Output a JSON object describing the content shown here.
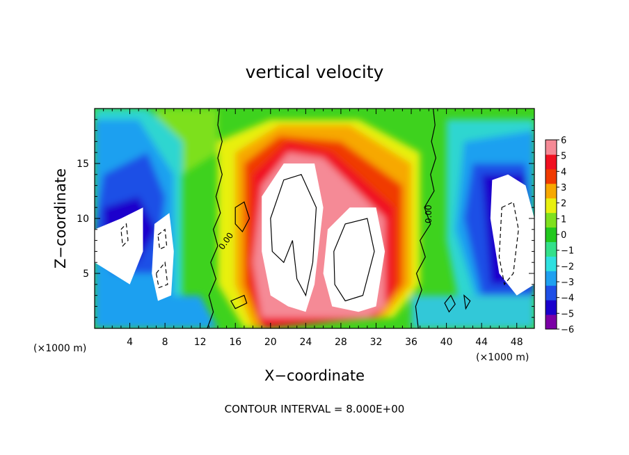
{
  "chart_data": {
    "type": "heatmap",
    "title": "vertical velocity",
    "xlabel": "X−coordinate",
    "ylabel": "Z−coordinate",
    "x_unit": "(×1000 m)",
    "y_unit": "(×1000 m)",
    "xlim": [
      0,
      50
    ],
    "ylim": [
      0,
      20
    ],
    "x_ticks": [
      "4",
      "8",
      "12",
      "16",
      "20",
      "24",
      "28",
      "32",
      "36",
      "40",
      "44",
      "48"
    ],
    "y_ticks": [
      "5",
      "10",
      "15"
    ],
    "contour_interval_text": "CONTOUR INTERVAL = 8.000E+00",
    "contour_interval": 8,
    "contour_labels": [
      "0.00",
      "0.00"
    ],
    "colorbar": {
      "ticks": [
        "6",
        "5",
        "4",
        "3",
        "2",
        "1",
        "0",
        "−1",
        "−2",
        "−3",
        "−4",
        "−5",
        "−6"
      ],
      "range": [
        -6,
        6
      ],
      "colors": [
        "#7b00a6",
        "#1a00cc",
        "#1f4fe6",
        "#1fa0f0",
        "#2fe0e0",
        "#33e08a",
        "#22c81e",
        "#7fe01e",
        "#e8f010",
        "#f7a800",
        "#f03a00",
        "#f01020",
        "#f58a96"
      ]
    },
    "features": [
      {
        "kind": "updraft",
        "sign": "positive",
        "x_center": 24.5,
        "z_range": [
          2,
          14
        ]
      },
      {
        "kind": "updraft",
        "sign": "positive",
        "x_center": 29.5,
        "z_range": [
          2,
          10
        ]
      },
      {
        "kind": "downdraft",
        "sign": "negative",
        "x_center": 47,
        "z_range": [
          3,
          14
        ]
      },
      {
        "kind": "downdraft",
        "sign": "negative",
        "x_center": 4,
        "z_range": [
          4,
          11
        ]
      },
      {
        "kind": "downdraft",
        "sign": "negative",
        "x_center": 8,
        "z_range": [
          3,
          10
        ]
      }
    ]
  }
}
